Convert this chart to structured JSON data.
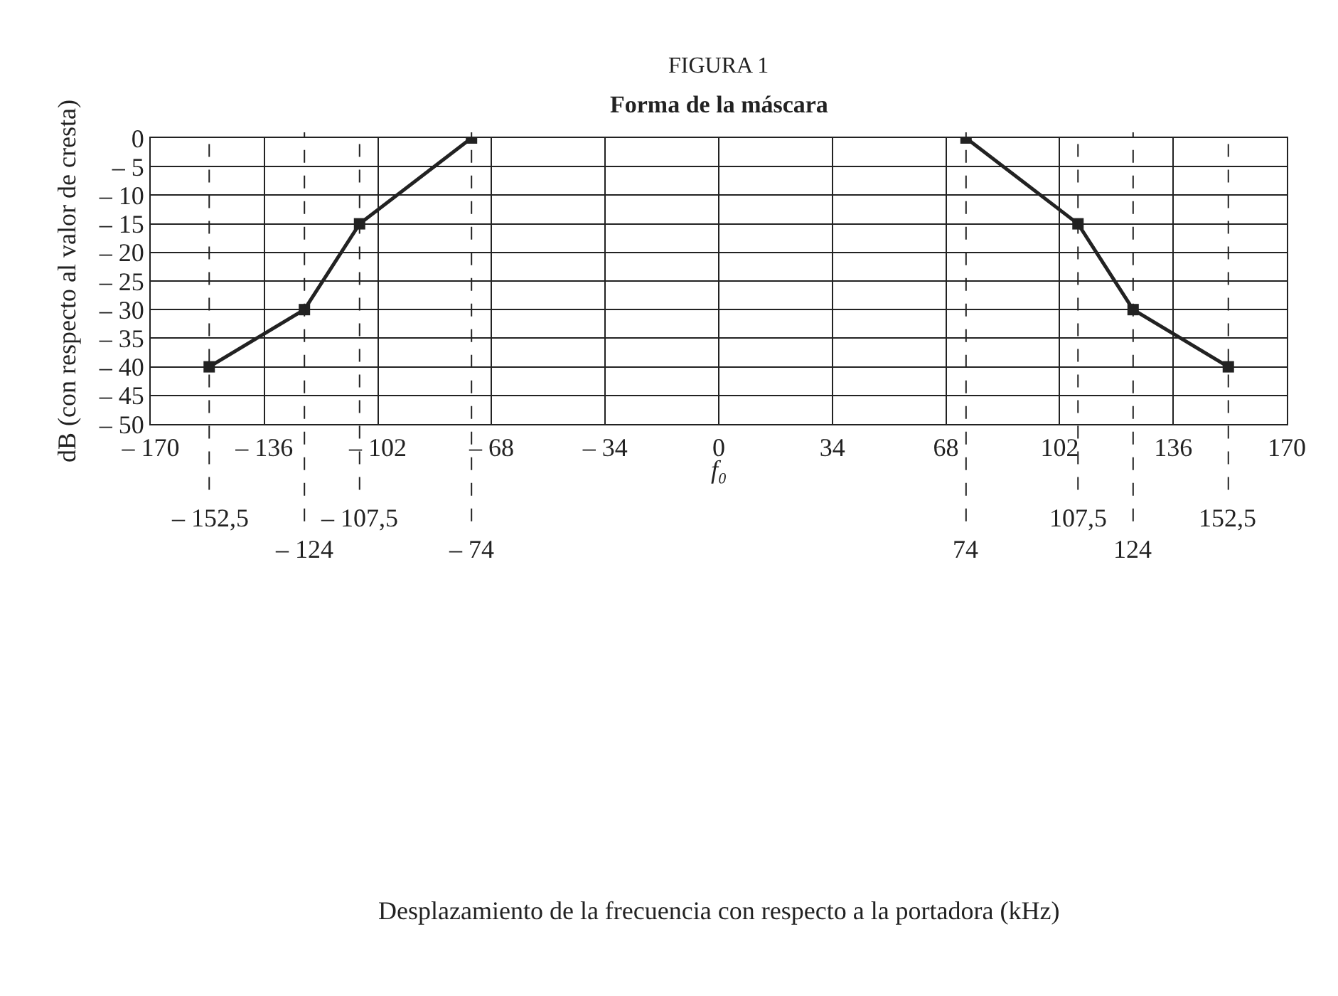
{
  "chart_data": {
    "type": "line",
    "title": "FIGURA 1",
    "subtitle": "Forma de la máscara",
    "ylabel": "dB (con respecto al valor de cresta)",
    "series": [
      {
        "color": "#222222",
        "x": [
          -152.5,
          -124,
          -107.5,
          -74
        ],
        "values": [
          -40,
          -30,
          -15,
          0
        ]
      },
      {
        "color": "#222222",
        "x": [
          74,
          107.5,
          124,
          152.5
        ],
        "values": [
          0,
          -15,
          -30,
          -40
        ]
      }
    ],
    "xlim": [
      -170,
      170
    ],
    "xticks": [
      {
        "value": -170,
        "label": "– 170"
      },
      {
        "value": -136,
        "label": "– 136"
      },
      {
        "value": -102,
        "label": "– 102"
      },
      {
        "value": -68,
        "label": "– 68"
      },
      {
        "value": -34,
        "label": "– 34"
      },
      0,
      34,
      68,
      102,
      136,
      170
    ],
    "ylim": [
      -50,
      0
    ],
    "yticks": [
      {
        "value": -50,
        "label": "– 50"
      },
      {
        "value": -45,
        "label": "– 45"
      },
      {
        "value": -40,
        "label": "– 40"
      },
      {
        "value": -35,
        "label": "– 35"
      },
      {
        "value": -30,
        "label": "– 30"
      },
      {
        "value": -25,
        "label": "– 25"
      },
      {
        "value": -20,
        "label": "– 20"
      },
      {
        "value": -15,
        "label": "– 15"
      },
      {
        "value": -10,
        "label": "– 10"
      },
      {
        "value": -5,
        "label": "– 5"
      },
      0
    ],
    "ref_lines": [
      {
        "axis": "x",
        "value": -152.5,
        "label": "– 152,5",
        "line_style": "dashed"
      },
      {
        "axis": "x",
        "value": -124,
        "label": "– 124",
        "line_style": "dashed"
      },
      {
        "axis": "x",
        "value": -107.5,
        "label": "– 107,5",
        "line_style": "dashed"
      },
      {
        "axis": "x",
        "value": -74,
        "label": "– 74",
        "line_style": "dashed"
      },
      {
        "axis": "x",
        "value": 107.5,
        "label": "107,5",
        "line_style": "dashed"
      },
      {
        "axis": "x",
        "value": 74,
        "label": "74",
        "line_style": "dashed"
      },
      {
        "axis": "x",
        "value": 152.5,
        "label": "152,5",
        "line_style": "dashed"
      },
      {
        "axis": "x",
        "value": 124,
        "label": "124",
        "line_style": "dashed"
      }
    ],
    "annotations": [
      "f₀",
      "Desplazamiento de la frecuencia con respecto a la portadora (kHz)"
    ],
    "grid": true,
    "legend": false,
    "marker": "square",
    "line_style": "solid"
  }
}
